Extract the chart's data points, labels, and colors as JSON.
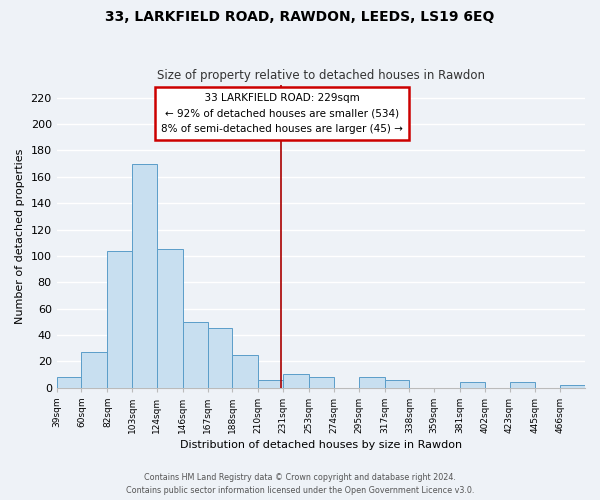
{
  "title": "33, LARKFIELD ROAD, RAWDON, LEEDS, LS19 6EQ",
  "subtitle": "Size of property relative to detached houses in Rawdon",
  "xlabel": "Distribution of detached houses by size in Rawdon",
  "ylabel": "Number of detached properties",
  "bar_color": "#c8dff0",
  "bar_edge_color": "#5b9dc9",
  "background_color": "#eef2f7",
  "grid_color": "#ffffff",
  "bin_labels": [
    "39sqm",
    "60sqm",
    "82sqm",
    "103sqm",
    "124sqm",
    "146sqm",
    "167sqm",
    "188sqm",
    "210sqm",
    "231sqm",
    "253sqm",
    "274sqm",
    "295sqm",
    "317sqm",
    "338sqm",
    "359sqm",
    "381sqm",
    "402sqm",
    "423sqm",
    "445sqm",
    "466sqm"
  ],
  "bar_heights": [
    8,
    27,
    104,
    170,
    105,
    50,
    45,
    25,
    6,
    10,
    8,
    0,
    8,
    6,
    0,
    0,
    4,
    0,
    4,
    0,
    2
  ],
  "ylim": [
    0,
    230
  ],
  "yticks": [
    0,
    20,
    40,
    60,
    80,
    100,
    120,
    140,
    160,
    180,
    200,
    220
  ],
  "bin_edges_values": [
    39,
    60,
    82,
    103,
    124,
    146,
    167,
    188,
    210,
    231,
    253,
    274,
    295,
    317,
    338,
    359,
    381,
    402,
    423,
    445,
    466,
    487
  ],
  "property_line_x": 229,
  "annotation_title": "33 LARKFIELD ROAD: 229sqm",
  "annotation_line1": "← 92% of detached houses are smaller (534)",
  "annotation_line2": "8% of semi-detached houses are larger (45) →",
  "annotation_box_color": "#ffffff",
  "annotation_border_color": "#cc0000",
  "vline_color": "#aa0000",
  "footer1": "Contains HM Land Registry data © Crown copyright and database right 2024.",
  "footer2": "Contains public sector information licensed under the Open Government Licence v3.0."
}
